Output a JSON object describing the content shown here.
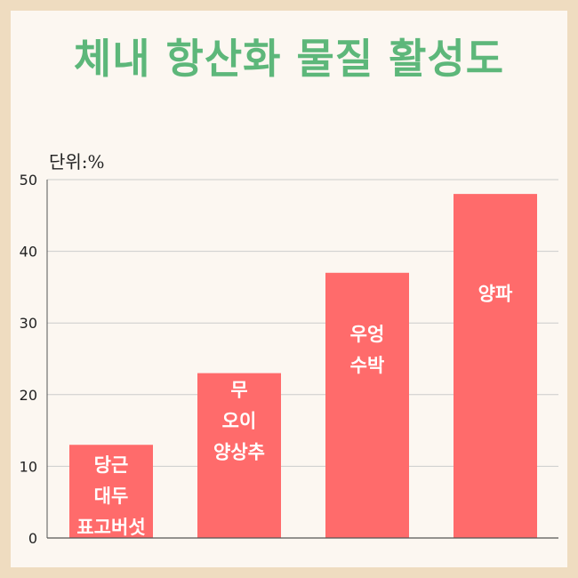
{
  "title": "체내 항산화 물질 활성도",
  "unit_label": "단위:%",
  "colors": {
    "bar": "#ff6b6b",
    "title": "#5db77a",
    "frame": "#efdcc0",
    "card": "#fcf7f1",
    "grid": "#cccccc",
    "axis": "#555555"
  },
  "chart_data": {
    "type": "bar",
    "categories": [
      [
        "당근",
        "대두",
        "표고버섯"
      ],
      [
        "무",
        "오이",
        "양상추"
      ],
      [
        "우엉",
        "수박"
      ],
      [
        "양파"
      ]
    ],
    "values": [
      13,
      23,
      37,
      48
    ],
    "ylim": [
      0,
      50
    ],
    "yticks": [
      0,
      10,
      20,
      30,
      40,
      50
    ],
    "grid": true,
    "legend": "none"
  }
}
